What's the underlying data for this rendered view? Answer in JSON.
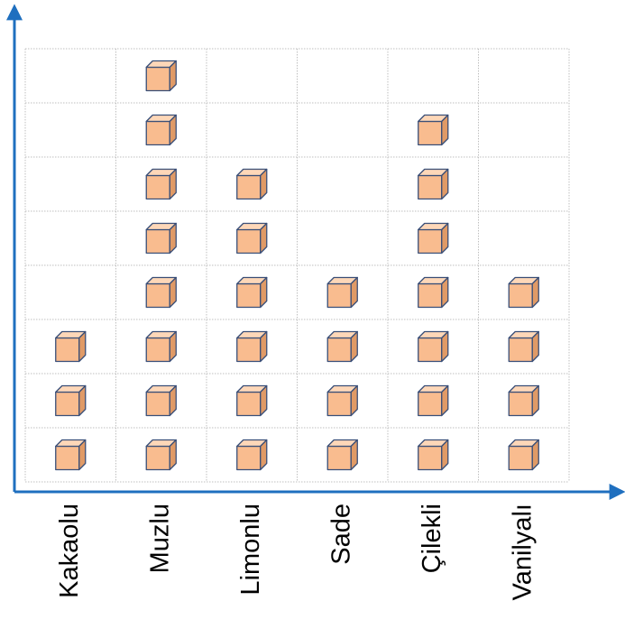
{
  "chart_data": {
    "type": "pictograph",
    "title": "",
    "xlabel": "",
    "ylabel": "",
    "categories": [
      "Kakaolu",
      "Muzlu",
      "Limonlu",
      "Sade",
      "Çilekli",
      "Vanilyalı"
    ],
    "values": [
      3,
      8,
      6,
      4,
      7,
      4
    ],
    "ylim": [
      0,
      8
    ],
    "grid": true,
    "icon": "cube-icon",
    "colors": {
      "axis": "#1f6fbf",
      "grid": "#bfbfbf",
      "cube_front": "#f9bc8f",
      "cube_top": "#fdd7b8",
      "cube_side": "#e09a66",
      "cube_edge": "#3a4f78"
    }
  }
}
